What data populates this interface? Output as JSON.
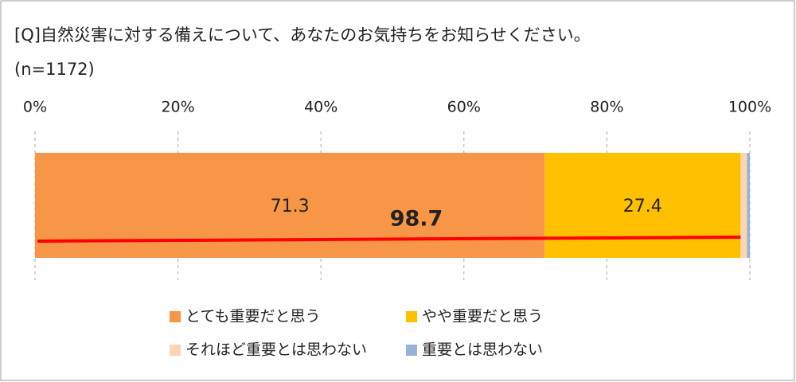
{
  "chart_data": {
    "type": "stacked-bar-horizontal",
    "title": "[Q]自然災害に対する備えについて、あなたのお気持ちをお知らせください。",
    "subtitle": "(n=1172)",
    "series": [
      {
        "name": "とても重要だと思う",
        "color": "#f79646",
        "values": [
          71.3
        ]
      },
      {
        "name": "やや重要だと思う",
        "color": "#ffc000",
        "values": [
          27.4
        ]
      },
      {
        "name": "それほど重要とは思わない",
        "color": "#fcd5b4",
        "values": [
          0.9
        ]
      },
      {
        "name": "重要とは思わない",
        "color": "#95b3d7",
        "values": [
          0.4
        ]
      }
    ],
    "data_labels_shown": [
      true,
      true,
      false,
      false
    ],
    "total": 98.7,
    "total_color": "#ff0000",
    "xlim": [
      0,
      100
    ],
    "xticks": [
      {
        "value": 0,
        "label": "0%"
      },
      {
        "value": 20,
        "label": "20%"
      },
      {
        "value": 40,
        "label": "40%"
      },
      {
        "value": 60,
        "label": "60%"
      },
      {
        "value": 80,
        "label": "80%"
      },
      {
        "value": 100,
        "label": "100%"
      }
    ],
    "grid": true,
    "legend": "bottom"
  }
}
